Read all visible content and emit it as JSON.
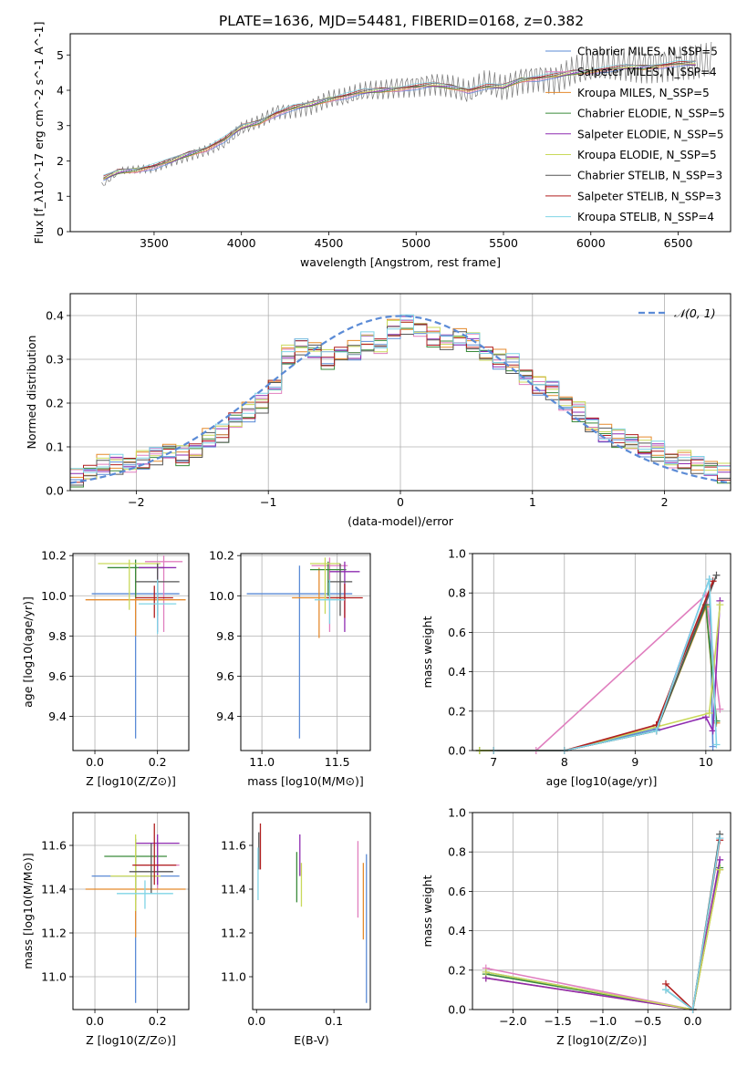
{
  "figure_title": "PLATE=1636, MJD=54481, FIBERID=0168, z=0.382",
  "palette": [
    "#5b8bd6",
    "#e07fbf",
    "#e58a2c",
    "#3a8a3a",
    "#8e2bb0",
    "#c9d95a",
    "#555555",
    "#b01f1f",
    "#7fd4e6"
  ],
  "chart_data": [
    {
      "id": "spectrum",
      "type": "line",
      "title": "PLATE=1636, MJD=54481, FIBERID=0168, z=0.382",
      "xlabel": "wavelength [Angstrom, rest frame]",
      "ylabel": "Flux [f_λ10^-17 erg cm^-2 s^-1 A^-1]",
      "xlim": [
        3020,
        6800
      ],
      "ylim": [
        0,
        5.6
      ],
      "xticks": [
        "3500",
        "4000",
        "4500",
        "5000",
        "5500",
        "6000",
        "6500"
      ],
      "yticks": [
        "0",
        "1",
        "2",
        "3",
        "4",
        "5"
      ],
      "grid": false,
      "legend_position": "upper-right",
      "legend": [
        {
          "label": "Chabrier MILES, N_SSP=5",
          "color": "#5b8bd6"
        },
        {
          "label": "Salpeter MILES, N_SSP=4",
          "color": "#e07fbf"
        },
        {
          "label": "Kroupa MILES, N_SSP=5",
          "color": "#e58a2c"
        },
        {
          "label": "Chabrier ELODIE, N_SSP=5",
          "color": "#3a8a3a"
        },
        {
          "label": "Salpeter ELODIE, N_SSP=5",
          "color": "#8e2bb0"
        },
        {
          "label": "Kroupa ELODIE, N_SSP=5",
          "color": "#c9d95a"
        },
        {
          "label": "Chabrier STELIB, N_SSP=3",
          "color": "#555555"
        },
        {
          "label": "Salpeter STELIB, N_SSP=3",
          "color": "#b01f1f"
        },
        {
          "label": "Kroupa STELIB, N_SSP=4",
          "color": "#7fd4e6"
        }
      ],
      "data_x": [
        3200,
        3300,
        3400,
        3500,
        3600,
        3700,
        3800,
        3900,
        4000,
        4100,
        4200,
        4300,
        4400,
        4500,
        4600,
        4700,
        4800,
        4900,
        5000,
        5100,
        5200,
        5300,
        5400,
        5500,
        5600,
        5700,
        5800,
        5900,
        6000,
        6100,
        6200,
        6300,
        6400,
        6500,
        6600,
        6700
      ],
      "data_y": [
        1.3,
        1.7,
        1.75,
        1.8,
        2.0,
        2.15,
        2.3,
        2.5,
        2.9,
        3.1,
        3.4,
        3.45,
        3.55,
        3.75,
        3.8,
        3.95,
        4.0,
        4.1,
        4.15,
        4.2,
        4.1,
        3.9,
        4.2,
        4.05,
        4.3,
        4.4,
        4.3,
        4.55,
        4.6,
        4.65,
        4.7,
        4.7,
        4.75,
        4.8,
        4.75,
        4.8
      ],
      "model_x": [
        3210,
        3300,
        3400,
        3500,
        3600,
        3700,
        3800,
        3900,
        4000,
        4100,
        4200,
        4300,
        4400,
        4500,
        4600,
        4700,
        4800,
        4900,
        5000,
        5100,
        5200,
        5300,
        5400,
        5500,
        5600,
        5700,
        5800,
        5900,
        6000,
        6100,
        6200,
        6300,
        6400,
        6500,
        6600
      ],
      "model_y": [
        1.5,
        1.7,
        1.75,
        1.85,
        2.0,
        2.2,
        2.35,
        2.6,
        2.95,
        3.1,
        3.35,
        3.5,
        3.6,
        3.75,
        3.85,
        3.95,
        4.0,
        4.05,
        4.1,
        4.15,
        4.1,
        4.0,
        4.1,
        4.1,
        4.3,
        4.35,
        4.4,
        4.5,
        4.55,
        4.6,
        4.65,
        4.65,
        4.7,
        4.75,
        4.75
      ]
    },
    {
      "id": "residuals",
      "type": "line",
      "xlabel": "(data-model)/error",
      "ylabel": "Normed distribution",
      "xlim": [
        -2.5,
        2.5
      ],
      "ylim": [
        0,
        0.45
      ],
      "xticks": [
        "−2",
        "−1",
        "0",
        "1",
        "2"
      ],
      "yticks": [
        "0.0",
        "0.1",
        "0.2",
        "0.3",
        "0.4"
      ],
      "grid": true,
      "legend_position": "upper-right",
      "legend": [
        {
          "label": "𝒩(0, 1)",
          "color": "#5b8bd6",
          "style": "dashed"
        }
      ],
      "bin_centers": [
        -2.45,
        -2.35,
        -2.25,
        -2.15,
        -2.05,
        -1.95,
        -1.85,
        -1.75,
        -1.65,
        -1.55,
        -1.45,
        -1.35,
        -1.25,
        -1.15,
        -1.05,
        -0.95,
        -0.85,
        -0.75,
        -0.65,
        -0.55,
        -0.45,
        -0.35,
        -0.25,
        -0.15,
        -0.05,
        0.05,
        0.15,
        0.25,
        0.35,
        0.45,
        0.55,
        0.65,
        0.75,
        0.85,
        0.95,
        1.05,
        1.15,
        1.25,
        1.35,
        1.45,
        1.55,
        1.65,
        1.75,
        1.85,
        1.95,
        2.05,
        2.15,
        2.25,
        2.35,
        2.45
      ],
      "hist_values": [
        0.03,
        0.04,
        0.06,
        0.06,
        0.06,
        0.07,
        0.08,
        0.09,
        0.08,
        0.09,
        0.12,
        0.13,
        0.16,
        0.18,
        0.2,
        0.24,
        0.31,
        0.33,
        0.32,
        0.3,
        0.31,
        0.32,
        0.34,
        0.33,
        0.37,
        0.38,
        0.37,
        0.35,
        0.34,
        0.35,
        0.34,
        0.31,
        0.3,
        0.29,
        0.26,
        0.24,
        0.23,
        0.2,
        0.18,
        0.15,
        0.13,
        0.12,
        0.11,
        0.1,
        0.09,
        0.07,
        0.07,
        0.06,
        0.05,
        0.04
      ]
    },
    {
      "id": "age-vs-Z",
      "type": "scatter",
      "xlabel": "Z [log10(Z/Z⊙)]",
      "ylabel": "age [log10(age/yr)]",
      "xlim": [
        -0.07,
        0.3
      ],
      "ylim": [
        9.23,
        10.21
      ],
      "xticks": [
        "0.0",
        "0.2"
      ],
      "yticks": [
        "9.4",
        "9.6",
        "9.8",
        "10.0",
        "10.2"
      ],
      "grid": true,
      "points": [
        {
          "x": 0.13,
          "xerr": 0.14,
          "y": 10.01,
          "yerr_lo": 0.72,
          "yerr_hi": 0.14
        },
        {
          "x": 0.22,
          "xerr": 0.06,
          "y": 10.17,
          "yerr_lo": 0.35,
          "yerr_hi": 0.03
        },
        {
          "x": 0.13,
          "xerr": 0.16,
          "y": 9.98,
          "yerr_lo": 0.18,
          "yerr_hi": 0.16
        },
        {
          "x": 0.13,
          "xerr": 0.09,
          "y": 10.14,
          "yerr_lo": 0.15,
          "yerr_hi": 0.04
        },
        {
          "x": 0.2,
          "xerr": 0.06,
          "y": 10.14,
          "yerr_lo": 0.32,
          "yerr_hi": 0.02
        },
        {
          "x": 0.11,
          "xerr": 0.1,
          "y": 10.16,
          "yerr_lo": 0.23,
          "yerr_hi": 0.02
        },
        {
          "x": 0.2,
          "xerr": 0.07,
          "y": 10.07,
          "yerr_lo": 0.17,
          "yerr_hi": 0.09
        },
        {
          "x": 0.19,
          "xerr": 0.06,
          "y": 9.99,
          "yerr_lo": 0.1,
          "yerr_hi": 0.06
        },
        {
          "x": 0.2,
          "xerr": 0.06,
          "y": 9.96,
          "yerr_lo": 0.15,
          "yerr_hi": 0.12
        }
      ]
    },
    {
      "id": "age-vs-mass",
      "type": "scatter",
      "xlabel": "mass [log10(M/M⊙)]",
      "ylabel": "",
      "xlim": [
        10.86,
        11.72
      ],
      "ylim": [
        9.23,
        10.21
      ],
      "xticks": [
        "11.0",
        "11.5"
      ],
      "yticks": [
        "9.4",
        "9.6",
        "9.8",
        "10.0",
        "10.2"
      ],
      "grid": true,
      "points": [
        {
          "x": 11.25,
          "xerr": 0.35,
          "y": 10.01,
          "yerr_lo": 0.72,
          "yerr_hi": 0.14
        },
        {
          "x": 11.45,
          "xerr": 0.12,
          "y": 10.15,
          "yerr_lo": 0.33,
          "yerr_hi": 0.04
        },
        {
          "x": 11.38,
          "xerr": 0.18,
          "y": 9.99,
          "yerr_lo": 0.2,
          "yerr_hi": 0.15
        },
        {
          "x": 11.44,
          "xerr": 0.12,
          "y": 10.13,
          "yerr_lo": 0.13,
          "yerr_hi": 0.04
        },
        {
          "x": 11.55,
          "xerr": 0.1,
          "y": 10.12,
          "yerr_lo": 0.3,
          "yerr_hi": 0.05
        },
        {
          "x": 11.42,
          "xerr": 0.1,
          "y": 10.16,
          "yerr_lo": 0.25,
          "yerr_hi": 0.03
        },
        {
          "x": 11.52,
          "xerr": 0.08,
          "y": 10.07,
          "yerr_lo": 0.17,
          "yerr_hi": 0.09
        },
        {
          "x": 11.55,
          "xerr": 0.12,
          "y": 9.99,
          "yerr_lo": 0.1,
          "yerr_hi": 0.07
        },
        {
          "x": 11.45,
          "xerr": 0.1,
          "y": 9.98,
          "yerr_lo": 0.12,
          "yerr_hi": 0.1
        }
      ]
    },
    {
      "id": "weight-vs-age",
      "type": "line",
      "xlabel": "age [log10(age/yr)]",
      "ylabel": "mass weight",
      "xlim": [
        6.7,
        10.35
      ],
      "ylim": [
        0,
        1.0
      ],
      "xticks": [
        "7",
        "8",
        "9",
        "10"
      ],
      "yticks": [
        "0.0",
        "0.2",
        "0.4",
        "0.6",
        "0.8",
        "1.0"
      ],
      "grid": true,
      "series_x": [
        [
          6.8,
          8.0,
          9.3,
          10.05,
          10.1
        ],
        [
          7.6,
          10.0,
          10.2
        ],
        [
          6.8,
          8.0,
          9.3,
          10.0,
          10.15
        ],
        [
          6.8,
          8.0,
          9.3,
          10.0,
          10.15
        ],
        [
          8.0,
          9.3,
          10.0,
          10.1,
          10.2
        ],
        [
          6.8,
          8.0,
          9.3,
          10.05,
          10.2
        ],
        [
          7.0,
          8.0,
          9.3,
          10.15
        ],
        [
          7.0,
          8.0,
          9.3,
          10.1
        ],
        [
          7.0,
          8.0,
          9.3,
          10.05,
          10.15
        ]
      ],
      "series_y": [
        [
          0.0,
          0.0,
          0.11,
          0.87,
          0.02
        ],
        [
          0.0,
          0.79,
          0.21
        ],
        [
          0.0,
          0.0,
          0.1,
          0.73,
          0.14
        ],
        [
          0.0,
          0.0,
          0.1,
          0.74,
          0.15
        ],
        [
          0.0,
          0.1,
          0.17,
          0.1,
          0.76
        ],
        [
          0.0,
          0.0,
          0.12,
          0.19,
          0.74
        ],
        [
          0.0,
          0.0,
          0.1,
          0.89
        ],
        [
          0.0,
          0.0,
          0.13,
          0.86
        ],
        [
          0.0,
          0.0,
          0.1,
          0.87,
          0.03
        ]
      ]
    },
    {
      "id": "mass-vs-Z",
      "type": "scatter",
      "xlabel": "Z [log10(Z/Z⊙)]",
      "ylabel": "mass [log10(M/M⊙)]",
      "xlim": [
        -0.07,
        0.3
      ],
      "ylim": [
        10.85,
        11.75
      ],
      "xticks": [
        "0.0",
        "0.2"
      ],
      "yticks": [
        "11.0",
        "11.2",
        "11.4",
        "11.6"
      ],
      "grid": true,
      "points": [
        {
          "x": 0.13,
          "xerr": 0.14,
          "y": 11.46,
          "yerr_lo": 0.58,
          "yerr_hi": 0.1
        },
        {
          "x": 0.2,
          "xerr": 0.07,
          "y": 11.51,
          "yerr_lo": 0.11,
          "yerr_hi": 0.11
        },
        {
          "x": 0.13,
          "xerr": 0.16,
          "y": 11.4,
          "yerr_lo": 0.22,
          "yerr_hi": 0.2
        },
        {
          "x": 0.13,
          "xerr": 0.1,
          "y": 11.55,
          "yerr_lo": 0.2,
          "yerr_hi": 0.08
        },
        {
          "x": 0.2,
          "xerr": 0.07,
          "y": 11.61,
          "yerr_lo": 0.19,
          "yerr_hi": 0.04
        },
        {
          "x": 0.13,
          "xerr": 0.08,
          "y": 11.46,
          "yerr_lo": 0.16,
          "yerr_hi": 0.19
        },
        {
          "x": 0.18,
          "xerr": 0.07,
          "y": 11.48,
          "yerr_lo": 0.1,
          "yerr_hi": 0.13
        },
        {
          "x": 0.19,
          "xerr": 0.07,
          "y": 11.51,
          "yerr_lo": 0.09,
          "yerr_hi": 0.19
        },
        {
          "x": 0.16,
          "xerr": 0.09,
          "y": 11.38,
          "yerr_lo": 0.07,
          "yerr_hi": 0.06
        }
      ]
    },
    {
      "id": "mass-vs-EBV",
      "type": "scatter",
      "xlabel": "E(B-V)",
      "ylabel": "",
      "xlim": [
        -0.005,
        0.147
      ],
      "ylim": [
        10.85,
        11.75
      ],
      "xticks": [
        "0.0",
        "0.1"
      ],
      "yticks": [
        "11.0",
        "11.2",
        "11.4",
        "11.6"
      ],
      "grid": false,
      "points": [
        {
          "x": 0.142,
          "y": 11.46,
          "yerr_lo": 0.58,
          "yerr_hi": 0.1
        },
        {
          "x": 0.131,
          "y": 11.48,
          "yerr_lo": 0.21,
          "yerr_hi": 0.14
        },
        {
          "x": 0.138,
          "y": 11.4,
          "yerr_lo": 0.23,
          "yerr_hi": 0.12
        },
        {
          "x": 0.052,
          "y": 11.45,
          "yerr_lo": 0.11,
          "yerr_hi": 0.12
        },
        {
          "x": 0.056,
          "y": 11.58,
          "yerr_lo": 0.12,
          "yerr_hi": 0.07
        },
        {
          "x": 0.058,
          "y": 11.42,
          "yerr_lo": 0.1,
          "yerr_hi": 0.1
        },
        {
          "x": 0.003,
          "y": 11.6,
          "yerr_lo": 0.11,
          "yerr_hi": 0.06
        },
        {
          "x": 0.005,
          "y": 11.6,
          "yerr_lo": 0.11,
          "yerr_hi": 0.1
        },
        {
          "x": 0.002,
          "y": 11.47,
          "yerr_lo": 0.12,
          "yerr_hi": 0.12
        }
      ]
    },
    {
      "id": "weight-vs-Z",
      "type": "line",
      "xlabel": "Z [log10(Z/Z⊙)]",
      "ylabel": "mass weight",
      "xlim": [
        -2.45,
        0.42
      ],
      "ylim": [
        0,
        1.0
      ],
      "xticks": [
        "−2.0",
        "−1.5",
        "−1.0",
        "−0.5",
        "0.0"
      ],
      "yticks": [
        "0.0",
        "0.2",
        "0.4",
        "0.6",
        "0.8",
        "1.0"
      ],
      "grid": true,
      "series_x": [
        [
          -2.3,
          0.0,
          0.3
        ],
        [
          -2.3,
          0.0,
          0.3
        ],
        [
          -2.3,
          0.0,
          0.3
        ],
        [
          -2.3,
          0.0,
          0.3
        ],
        [
          -2.3,
          0.0,
          0.3
        ],
        [
          -2.3,
          0.0,
          0.3
        ],
        [
          -0.3,
          0.0,
          0.3
        ],
        [
          -0.3,
          0.0,
          0.3
        ],
        [
          -0.3,
          0.0,
          0.3
        ]
      ],
      "series_y": [
        [
          0.19,
          0.0,
          0.87
        ],
        [
          0.21,
          0.0,
          0.76
        ],
        [
          0.16,
          0.0,
          0.71
        ],
        [
          0.18,
          0.0,
          0.72
        ],
        [
          0.16,
          0.0,
          0.76
        ],
        [
          0.19,
          0.0,
          0.71
        ],
        [
          0.1,
          0.0,
          0.89
        ],
        [
          0.13,
          0.0,
          0.86
        ],
        [
          0.1,
          0.0,
          0.87
        ]
      ]
    }
  ]
}
